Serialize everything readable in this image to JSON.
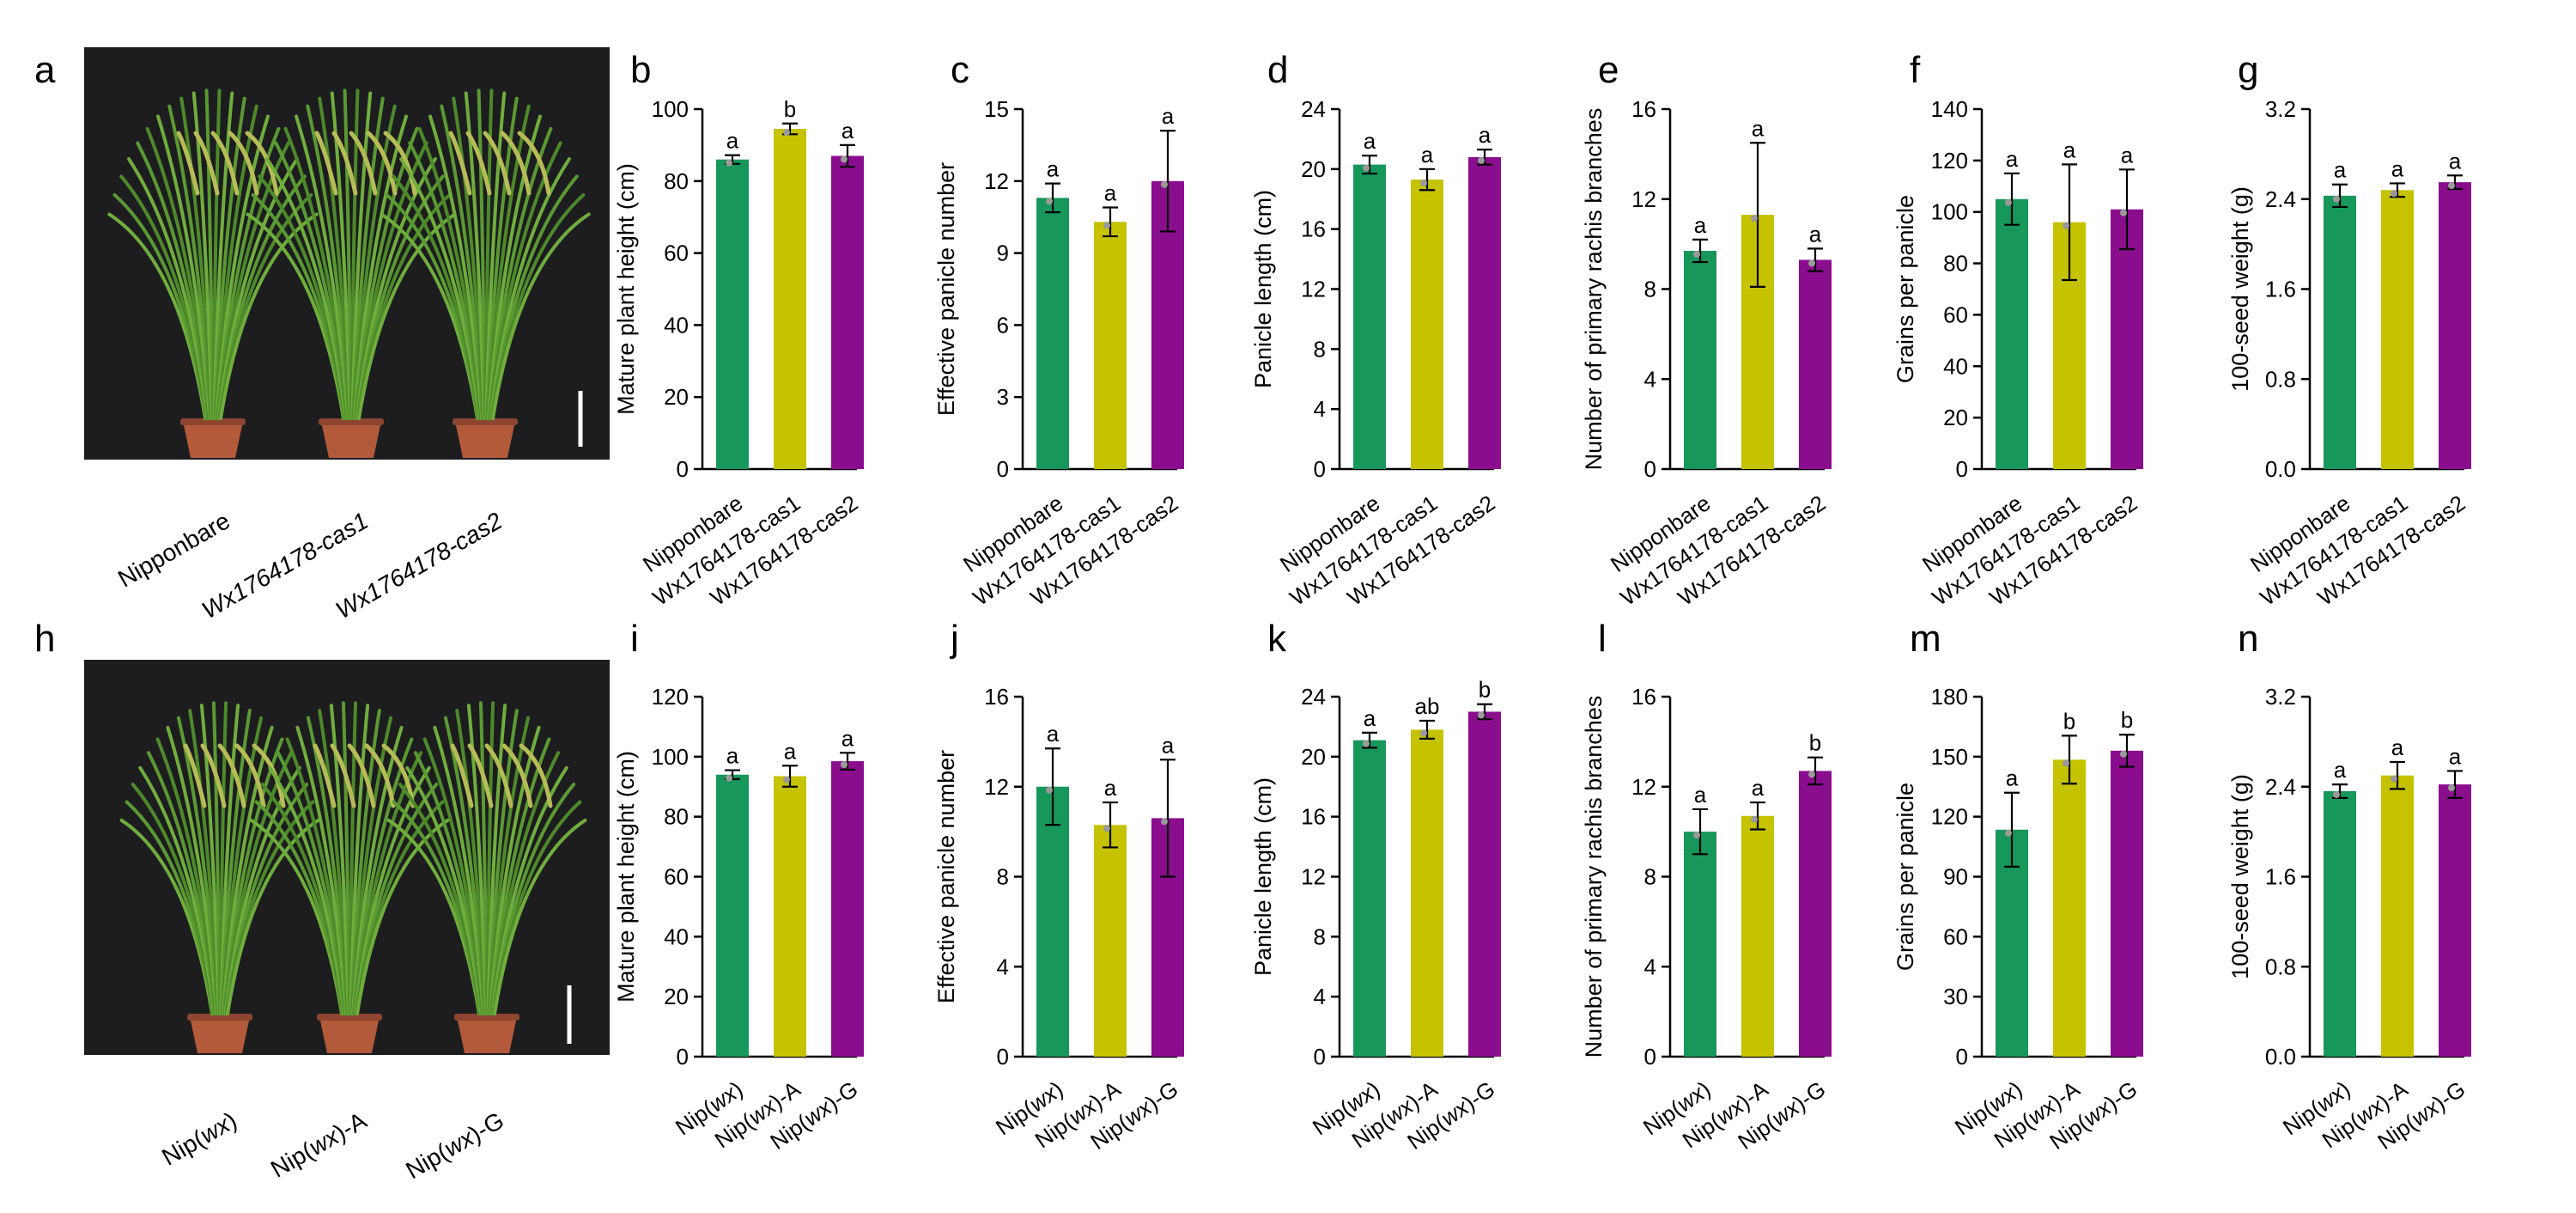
{
  "colors": {
    "green": "#17975b",
    "yellow": "#c5c200",
    "purple": "#8a0d8e",
    "axis": "#000000",
    "photo_bg": "#1d1d20",
    "pot": "#b25a3a",
    "plant": "#5a9a32",
    "scale_bar": "#ffffff"
  },
  "photos": [
    {
      "panel_letter": "a",
      "labels": [
        "Nipponbare",
        "Wx1764178-cas1",
        "Wx1764178-cas2"
      ],
      "italic": [
        false,
        true,
        true
      ]
    },
    {
      "panel_letter": "h",
      "label_parts": [
        [
          "Nip(",
          "wx",
          ")"
        ],
        [
          "Nip(",
          "wx",
          ")-A"
        ],
        [
          "Nip(",
          "wx",
          ")-G"
        ]
      ]
    }
  ],
  "chart_data": [
    {
      "panel": "b",
      "type": "bar",
      "ylabel": "Mature plant height (cm)",
      "ylim": [
        0,
        100
      ],
      "yticks": [
        0,
        20,
        40,
        60,
        80,
        100
      ],
      "tick_decimals": 0,
      "categories": [
        "Nipponbare",
        "Wx1764178-cas1",
        "Wx1764178-cas2"
      ],
      "values": [
        86,
        94.5,
        87
      ],
      "errors": [
        1.2,
        1.5,
        3
      ],
      "significance": [
        "a",
        "b",
        "a"
      ]
    },
    {
      "panel": "c",
      "type": "bar",
      "ylabel": "Effective panicle number",
      "ylim": [
        0,
        15
      ],
      "yticks": [
        0,
        3,
        6,
        9,
        12,
        15
      ],
      "tick_decimals": 0,
      "categories": [
        "Nipponbare",
        "Wx1764178-cas1",
        "Wx1764178-cas2"
      ],
      "values": [
        11.3,
        10.3,
        12
      ],
      "errors": [
        0.6,
        0.6,
        2.1
      ],
      "significance": [
        "a",
        "a",
        "a"
      ]
    },
    {
      "panel": "d",
      "type": "bar",
      "ylabel": "Panicle length (cm)",
      "ylim": [
        0,
        24
      ],
      "yticks": [
        0,
        4,
        8,
        12,
        16,
        20,
        24
      ],
      "tick_decimals": 0,
      "categories": [
        "Nipponbare",
        "Wx1764178-cas1",
        "Wx1764178-cas2"
      ],
      "values": [
        20.3,
        19.3,
        20.8
      ],
      "errors": [
        0.6,
        0.7,
        0.5
      ],
      "significance": [
        "a",
        "a",
        "a"
      ]
    },
    {
      "panel": "e",
      "type": "bar",
      "ylabel": "Number of primary rachis branches",
      "ylim": [
        0,
        16
      ],
      "yticks": [
        0,
        4,
        8,
        12,
        16
      ],
      "tick_decimals": 0,
      "categories": [
        "Nipponbare",
        "Wx1764178-cas1",
        "Wx1764178-cas2"
      ],
      "values": [
        9.7,
        11.3,
        9.3
      ],
      "errors": [
        0.5,
        3.2,
        0.5
      ],
      "significance": [
        "a",
        "a",
        "a"
      ]
    },
    {
      "panel": "f",
      "type": "bar",
      "ylabel": "Grains per panicle",
      "ylim": [
        0,
        140
      ],
      "yticks": [
        0,
        20,
        40,
        60,
        80,
        100,
        120,
        140
      ],
      "tick_decimals": 0,
      "categories": [
        "Nipponbare",
        "Wx1764178-cas1",
        "Wx1764178-cas2"
      ],
      "values": [
        105,
        96,
        101
      ],
      "errors": [
        10,
        22.5,
        15.5
      ],
      "significance": [
        "a",
        "a",
        "a"
      ]
    },
    {
      "panel": "g",
      "type": "bar",
      "ylabel": "100-seed weight (g)",
      "ylim": [
        0,
        3.2
      ],
      "yticks": [
        0,
        0.8,
        1.6,
        2.4,
        3.2
      ],
      "tick_decimals": 1,
      "categories": [
        "Nipponbare",
        "Wx1764178-cas1",
        "Wx1764178-cas2"
      ],
      "values": [
        2.43,
        2.48,
        2.55
      ],
      "errors": [
        0.1,
        0.06,
        0.06
      ],
      "significance": [
        "a",
        "a",
        "a"
      ]
    },
    {
      "panel": "i",
      "type": "bar",
      "ylabel": "Mature plant height (cm)",
      "ylim": [
        0,
        120
      ],
      "yticks": [
        0,
        20,
        40,
        60,
        80,
        100,
        120
      ],
      "tick_decimals": 0,
      "categories": [
        "Nip(wx)",
        "Nip(wx)-A",
        "Nip(wx)-G"
      ],
      "values": [
        94,
        93.5,
        98.5
      ],
      "errors": [
        1.5,
        3.5,
        2.8
      ],
      "significance": [
        "a",
        "a",
        "a"
      ]
    },
    {
      "panel": "j",
      "type": "bar",
      "ylabel": "Effective panicle number",
      "ylim": [
        0,
        16
      ],
      "yticks": [
        0,
        4,
        8,
        12,
        16
      ],
      "tick_decimals": 0,
      "categories": [
        "Nip(wx)",
        "Nip(wx)-A",
        "Nip(wx)-G"
      ],
      "values": [
        12,
        10.3,
        10.6
      ],
      "errors": [
        1.7,
        1.0,
        2.6
      ],
      "significance": [
        "a",
        "a",
        "a"
      ]
    },
    {
      "panel": "k",
      "type": "bar",
      "ylabel": "Panicle length (cm)",
      "ylim": [
        0,
        24
      ],
      "yticks": [
        0,
        4,
        8,
        12,
        16,
        20,
        24
      ],
      "tick_decimals": 0,
      "categories": [
        "Nip(wx)",
        "Nip(wx)-A",
        "Nip(wx)-G"
      ],
      "values": [
        21.1,
        21.8,
        23
      ],
      "errors": [
        0.5,
        0.6,
        0.5
      ],
      "significance": [
        "a",
        "ab",
        "b"
      ]
    },
    {
      "panel": "l",
      "type": "bar",
      "ylabel": "Number of primary rachis branches",
      "ylim": [
        0,
        16
      ],
      "yticks": [
        0,
        4,
        8,
        12,
        16
      ],
      "tick_decimals": 0,
      "categories": [
        "Nip(wx)",
        "Nip(wx)-A",
        "Nip(wx)-G"
      ],
      "values": [
        10,
        10.7,
        12.7
      ],
      "errors": [
        1.0,
        0.6,
        0.6
      ],
      "significance": [
        "a",
        "a",
        "b"
      ]
    },
    {
      "panel": "m",
      "type": "bar",
      "ylabel": "Grains per panicle",
      "ylim": [
        0,
        180
      ],
      "yticks": [
        0,
        30,
        60,
        90,
        120,
        150,
        180
      ],
      "tick_decimals": 0,
      "categories": [
        "Nip(wx)",
        "Nip(wx)-A",
        "Nip(wx)-G"
      ],
      "values": [
        113.5,
        148.5,
        153
      ],
      "errors": [
        18.5,
        12,
        8
      ],
      "significance": [
        "a",
        "b",
        "b"
      ]
    },
    {
      "panel": "n",
      "type": "bar",
      "ylabel": "100-seed weight (g)",
      "ylim": [
        0,
        3.2
      ],
      "yticks": [
        0,
        0.8,
        1.6,
        2.4,
        3.2
      ],
      "tick_decimals": 1,
      "categories": [
        "Nip(wx)",
        "Nip(wx)-A",
        "Nip(wx)-G"
      ],
      "values": [
        2.36,
        2.5,
        2.42
      ],
      "errors": [
        0.06,
        0.12,
        0.12
      ],
      "significance": [
        "a",
        "a",
        "a"
      ]
    }
  ]
}
